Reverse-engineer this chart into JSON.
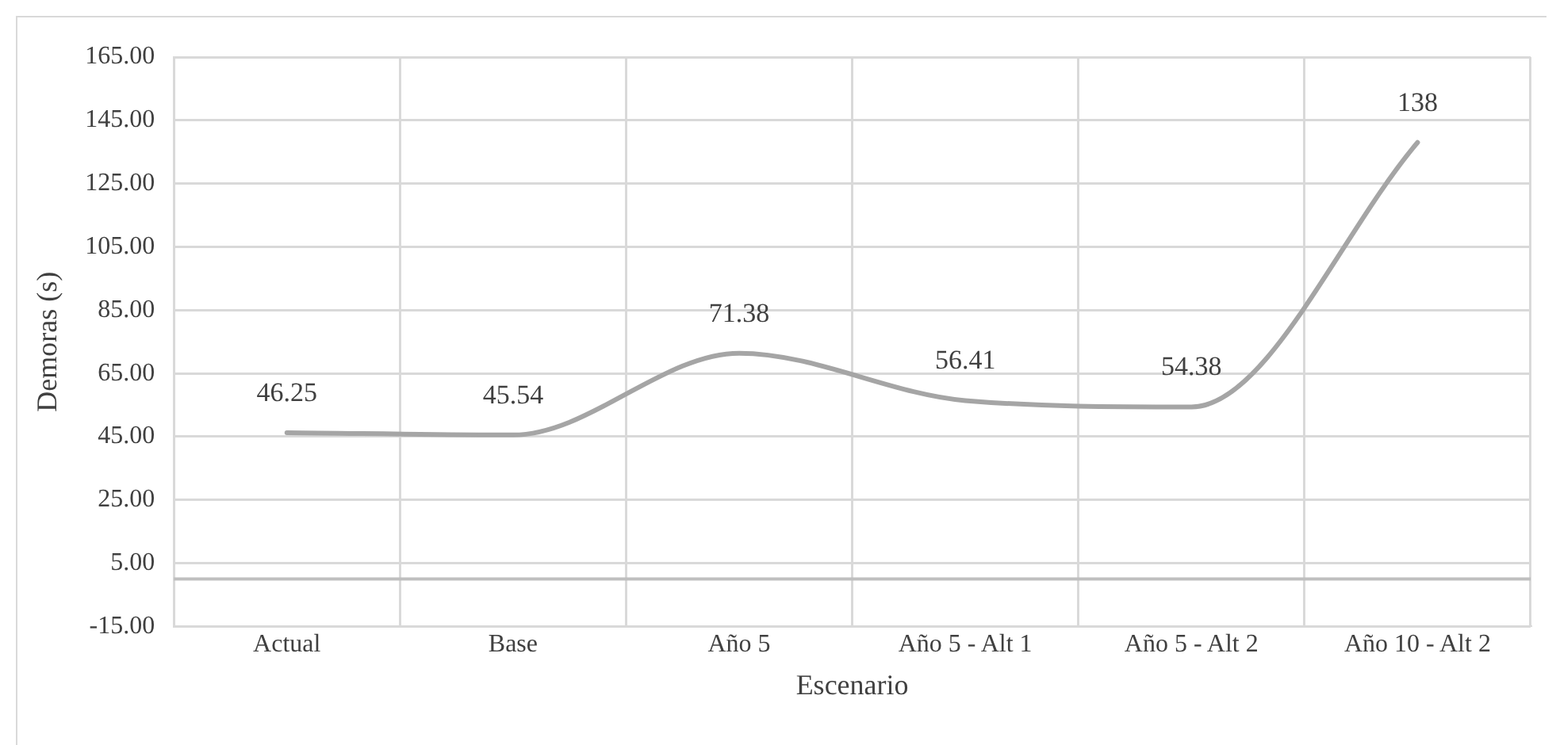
{
  "chart_data": {
    "type": "line",
    "xlabel": "Escenario",
    "ylabel": "Demoras (s)",
    "categories": [
      "Actual",
      "Base",
      "Año 5",
      "Año 5 - Alt 1",
      "Año 5 - Alt 2",
      "Año 10 - Alt 2"
    ],
    "series": [
      {
        "color": "#a5a5a5",
        "values": [
          46.25,
          45.54,
          71.38,
          56.41,
          54.38,
          138
        ]
      }
    ],
    "ylim": [
      -15,
      165
    ],
    "yticks": [
      {
        "value": -15,
        "label": "-15.00"
      },
      {
        "value": 5,
        "label": "5.00"
      },
      {
        "value": 25,
        "label": "25.00"
      },
      {
        "value": 45,
        "label": "45.00"
      },
      {
        "value": 65,
        "label": "65.00"
      },
      {
        "value": 85,
        "label": "85.00"
      },
      {
        "value": 105,
        "label": "105.00"
      },
      {
        "value": 125,
        "label": "125.00"
      },
      {
        "value": 145,
        "label": "145.00"
      },
      {
        "value": 165,
        "label": "165.00"
      }
    ],
    "ref_lines": [
      {
        "axis": "y",
        "value": 0,
        "color": "#bfbfbf"
      }
    ],
    "grid": true,
    "legend": false,
    "marker": "none",
    "line_style": "solid",
    "data_labels": true
  }
}
